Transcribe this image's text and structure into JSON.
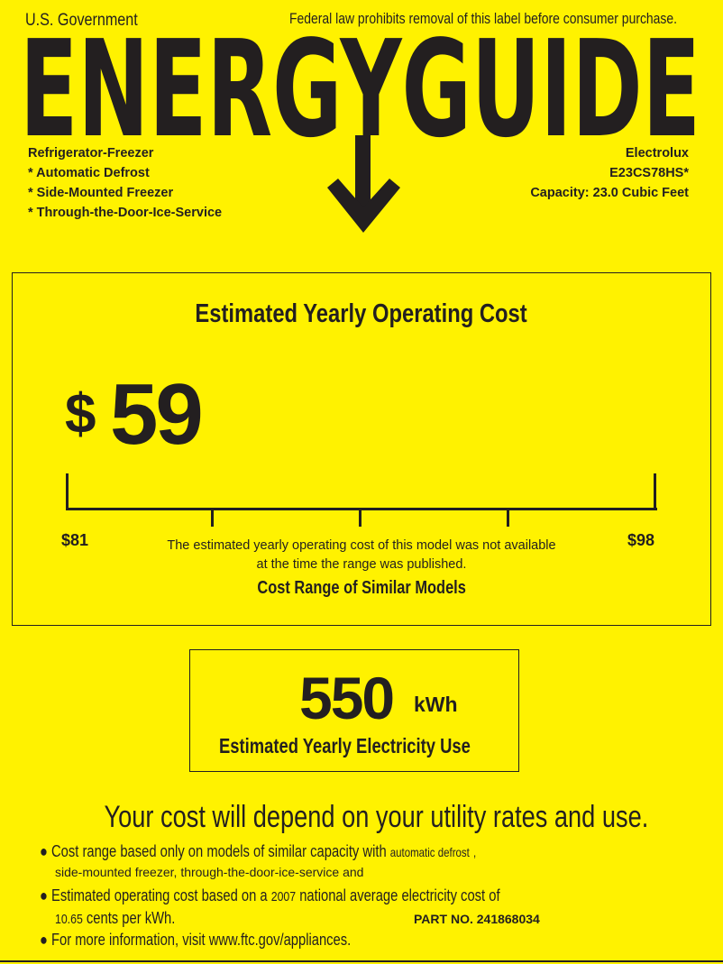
{
  "header": {
    "gov": "U.S. Government",
    "notice": "Federal law prohibits removal of this label before consumer purchase.",
    "logo_text": "ENERGYGUIDE"
  },
  "product": {
    "type": "Refrigerator-Freezer",
    "features": [
      "* Automatic Defrost",
      "* Side-Mounted Freezer",
      "* Through-the-Door-Ice-Service"
    ],
    "brand": "Electrolux",
    "model": "E23CS78HS*",
    "capacity": "Capacity: 23.0 Cubic Feet"
  },
  "cost": {
    "title": "Estimated Yearly Operating Cost",
    "currency": "$",
    "value": "59",
    "range_min": "$81",
    "range_max": "$98",
    "note_line1": "The estimated yearly operating cost of this model was not available",
    "note_line2": "at the time the range was published.",
    "range_label": "Cost Range of Similar Models"
  },
  "electricity": {
    "value": "550",
    "unit": "kWh",
    "label": "Estimated Yearly Electricity Use"
  },
  "footer": {
    "headline": "Your cost will depend on your utility rates and use.",
    "b1_text": "Cost range based only on models of similar capacity with",
    "b1_fill1": "automatic defrost",
    "b1_comma": ",",
    "b1_fill2": "side-mounted freezer",
    "b1_comma2": ",",
    "b1_fill3": "through-the-door-ice-service",
    "b1_and": "and",
    "b2_text": "Estimated operating cost based on a",
    "b2_year": "2007",
    "b2_text2": "national average electricity cost of",
    "b2_rate": "10.65",
    "b2_text3": "cents per kWh.",
    "part_no": "PART NO. 241868034",
    "b3_text": "For more information, visit www.ftc.gov/appliances."
  },
  "colors": {
    "background": "#fff200",
    "ink": "#231f20"
  }
}
